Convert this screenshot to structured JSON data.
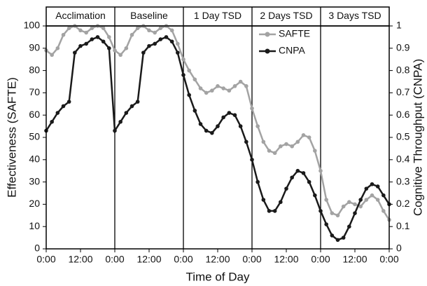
{
  "chart_data": {
    "type": "line",
    "periods": [
      "Acclimation",
      "Baseline",
      "1 Day TSD",
      "2 Days TSD",
      "3 Days TSD"
    ],
    "xlabel": "Time of Day",
    "ylabel": "Effectiveness (SAFTE)",
    "y2label": "Cognitive Throughput (CNPA)",
    "x": [
      0,
      2,
      4,
      6,
      8,
      10,
      12,
      14,
      16,
      18,
      20,
      22,
      24,
      26,
      28,
      30,
      32,
      34,
      36,
      38,
      40,
      42,
      44,
      46,
      48,
      50,
      52,
      54,
      56,
      58,
      60,
      62,
      64,
      66,
      68,
      70,
      72,
      74,
      76,
      78,
      80,
      82,
      84,
      86,
      88,
      90,
      92,
      94,
      96,
      98,
      100,
      102,
      104,
      106,
      108,
      110,
      112,
      114,
      116,
      118,
      120
    ],
    "xlim": [
      0,
      120
    ],
    "xticks": [
      {
        "value": 0,
        "label": "0:00"
      },
      {
        "value": 12,
        "label": "12:00"
      },
      {
        "value": 24,
        "label": "0:00"
      },
      {
        "value": 36,
        "label": "12:00"
      },
      {
        "value": 48,
        "label": "0:00"
      },
      {
        "value": 60,
        "label": "12:00"
      },
      {
        "value": 72,
        "label": "0:00"
      },
      {
        "value": 84,
        "label": "12:00"
      },
      {
        "value": 96,
        "label": "0:00"
      },
      {
        "value": 108,
        "label": "12:00"
      },
      {
        "value": 120,
        "label": "0:00"
      }
    ],
    "ylim": [
      0,
      100
    ],
    "yticks": [
      0,
      10,
      20,
      30,
      40,
      50,
      60,
      70,
      80,
      90,
      100
    ],
    "y2lim": [
      0,
      1
    ],
    "y2ticks": [
      0,
      0.1,
      0.2,
      0.3,
      0.4,
      0.5,
      0.6,
      0.7,
      0.8,
      0.9,
      1
    ],
    "legend": "upper center",
    "series": [
      {
        "name": "SAFTE",
        "color": "#a3a3a3",
        "values": [
          89,
          87,
          90,
          96,
          99,
          100,
          98,
          97,
          99,
          100,
          99,
          95,
          89,
          87,
          90,
          96,
          99,
          100,
          98,
          97,
          99,
          100,
          98,
          92,
          85,
          80,
          76,
          72,
          70,
          71,
          73,
          72,
          71,
          73,
          75,
          73,
          63,
          55,
          48,
          44,
          43,
          46,
          47,
          46,
          48,
          51,
          50,
          44,
          35,
          22,
          16,
          15,
          19,
          21,
          20,
          19,
          22,
          24,
          22,
          17,
          13
        ]
      },
      {
        "name": "CNPA",
        "color": "#1a1a1a",
        "axis": "y2",
        "values": [
          0.53,
          0.57,
          0.61,
          0.64,
          0.66,
          0.88,
          0.91,
          0.92,
          0.94,
          0.95,
          0.93,
          0.9,
          0.53,
          0.57,
          0.61,
          0.64,
          0.66,
          0.88,
          0.91,
          0.92,
          0.94,
          0.95,
          0.93,
          0.88,
          0.78,
          0.69,
          0.62,
          0.56,
          0.53,
          0.52,
          0.55,
          0.59,
          0.61,
          0.6,
          0.55,
          0.48,
          0.4,
          0.3,
          0.22,
          0.17,
          0.17,
          0.21,
          0.27,
          0.32,
          0.35,
          0.34,
          0.3,
          0.24,
          0.17,
          0.11,
          0.06,
          0.04,
          0.05,
          0.1,
          0.16,
          0.22,
          0.27,
          0.29,
          0.28,
          0.24,
          0.2
        ]
      }
    ]
  }
}
